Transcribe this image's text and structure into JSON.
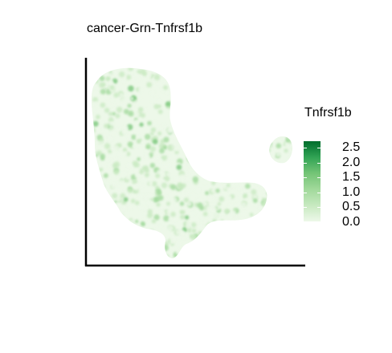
{
  "chart_data": {
    "type": "scatter",
    "title": "cancer-Grn-Tnfrsf1b",
    "xlabel": "",
    "ylabel": "",
    "legend": {
      "title": "Tnfrsf1b",
      "position": "right",
      "ticks": [
        "2.5",
        "2.0",
        "1.5",
        "1.0",
        "0.5",
        "0.0"
      ],
      "range": [
        0,
        2.7
      ]
    },
    "color_scale": [
      "#edf8e9",
      "#c7e9c0",
      "#a1d99b",
      "#74c476",
      "#31a354",
      "#006d2c"
    ],
    "grid": false,
    "point_count": 1400,
    "expression_summary": "mostly 0.0–0.5, scattered cells up to ~1.0"
  }
}
